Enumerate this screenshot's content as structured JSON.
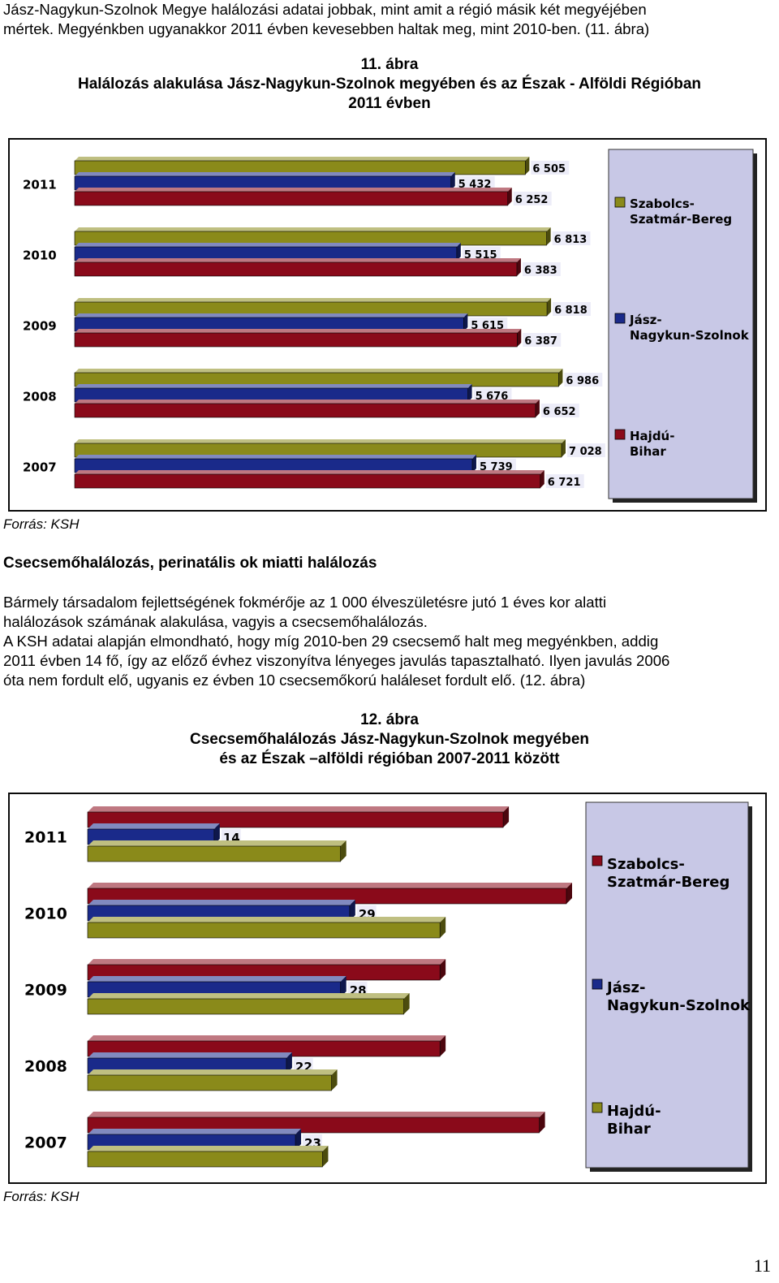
{
  "intro": {
    "line1": "Jász-Nagykun-Szolnok Megye halálozási adatai jobbak, mint amit a régió másik két megyéjében",
    "line2": "mértek. Megyénkben ugyanakkor 2011 évben kevesebben haltak meg, mint 2010-ben. (11. ábra)"
  },
  "figure11": {
    "number": "11. ábra",
    "title_line1": "Halálozás alakulása Jász-Nagykun-Szolnok megyében és az Észak - Alföldi Régióban",
    "title_line2": "2011 évben",
    "source": "Forrás: KSH"
  },
  "section": {
    "heading": "Csecsemőhalálozás, perinatális ok miatti halálozás",
    "p1_line1": "Bármely társadalom fejlettségének fokmérője az 1 000 élveszületésre jutó 1 éves kor alatti",
    "p1_line2": "halálozások számának alakulása, vagyis a csecsemőhalálozás.",
    "p2_line1": "A KSH adatai alapján elmondható, hogy míg 2010-ben 29 csecsemő halt meg megyénkben, addig",
    "p2_line2": "2011 évben 14 fő, így az előző évhez viszonyítva lényeges javulás tapasztalható. Ilyen javulás 2006",
    "p2_line3": "óta nem fordult elő, ugyanis ez évben 10 csecsemőkorú haláleset fordult elő. (12. ábra)"
  },
  "figure12": {
    "number": "12. ábra",
    "title_line1": "Csecsemőhalálozás Jász-Nagykun-Szolnok megyében",
    "title_line2": "és az Észak –alföldi régióban 2007-2011 között",
    "source": "Forrás: KSH"
  },
  "page_number": "11",
  "colors": {
    "szabolcs": "#8a8a1a",
    "jasz": "#1a2a8a",
    "hajdu": "#8a0a1a",
    "panel_bg": "#c8c8e6",
    "frame": "#0a0a0a"
  },
  "chart_data": [
    {
      "type": "bar",
      "orientation": "horizontal",
      "categories": [
        "2011",
        "2010",
        "2009",
        "2008",
        "2007"
      ],
      "series": [
        {
          "name": "Szabolcs-Szatmár-Bereg",
          "color": "#8a8a1a",
          "values": [
            6505,
            6813,
            6818,
            6986,
            7028
          ],
          "labels": [
            "6 505",
            "6 813",
            "6 818",
            "6 986",
            "7 028"
          ]
        },
        {
          "name": "Jász-Nagykun-Szolnok",
          "color": "#1a2a8a",
          "values": [
            5432,
            5515,
            5615,
            5676,
            5739
          ],
          "labels": [
            "5 432",
            "5 515",
            "5 615",
            "5 676",
            "5 739"
          ]
        },
        {
          "name": "Hajdú-Bihar",
          "color": "#8a0a1a",
          "values": [
            6252,
            6383,
            6387,
            6652,
            6721
          ],
          "labels": [
            "6 252",
            "6 383",
            "6 387",
            "6 652",
            "6 721"
          ]
        }
      ],
      "legend": [
        "Szabolcs-Szatmár-Bereg",
        "Jász-Nagykun-Szolnok",
        "Hajdú-Bihar"
      ],
      "legend_position": "right",
      "grid": false,
      "style": "3d"
    },
    {
      "type": "bar",
      "orientation": "horizontal",
      "categories": [
        "2011",
        "2010",
        "2009",
        "2008",
        "2007"
      ],
      "series": [
        {
          "name": "Szabolcs-Szatmár-Bereg",
          "color": "#8a0a1a",
          "values": [
            46,
            53,
            39,
            39,
            50
          ]
        },
        {
          "name": "Jász-Nagykun-Szolnok",
          "color": "#1a2a8a",
          "values": [
            14,
            29,
            28,
            22,
            23
          ],
          "labels": [
            "14",
            "29",
            "28",
            "22",
            "23"
          ]
        },
        {
          "name": "Hajdú-Bihar",
          "color": "#8a8a1a",
          "values": [
            28,
            39,
            35,
            27,
            26
          ]
        }
      ],
      "legend": [
        "Szabolcs-Szatmár-Bereg",
        "Jász-Nagykun-Szolnok",
        "Hajdú-Bihar"
      ],
      "legend_position": "right",
      "grid": false,
      "style": "3d"
    }
  ]
}
